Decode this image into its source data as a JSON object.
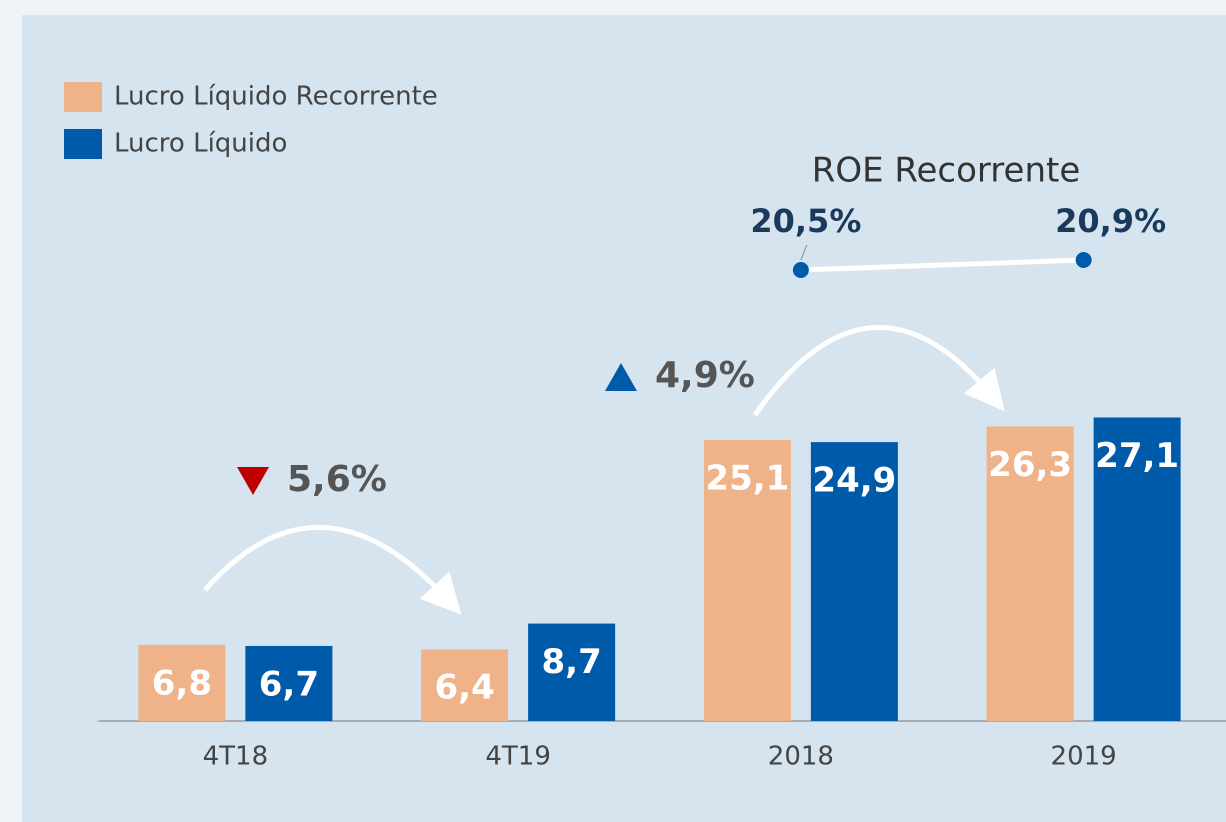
{
  "chart_data": {
    "type": "bar",
    "categories": [
      "4T18",
      "4T19",
      "2018",
      "2019"
    ],
    "series": [
      {
        "name": "Lucro Líquido Recorrente",
        "color": "#f0b389",
        "values": [
          6.8,
          6.4,
          25.1,
          26.3
        ],
        "value_labels": [
          "6,8",
          "6,4",
          "25,1",
          "26,3"
        ]
      },
      {
        "name": "Lucro Líquido",
        "color": "#005aaa",
        "values": [
          6.7,
          8.7,
          24.9,
          27.1
        ],
        "value_labels": [
          "6,7",
          "8,7",
          "24,9",
          "27,1"
        ]
      }
    ],
    "ylim": [
      0,
      40
    ],
    "yticks": [
      0,
      10,
      20,
      30,
      40
    ],
    "annotations": [
      {
        "label": "5,6%",
        "direction": "down",
        "color": "#c00000"
      },
      {
        "label": "4,9%",
        "direction": "up",
        "color": "#005aaa"
      }
    ],
    "roe": {
      "title": "ROE Recorrente",
      "values": [
        20.5,
        20.9
      ],
      "value_labels": [
        "20,5%",
        "20,9%"
      ],
      "color": "#005aaa"
    }
  }
}
